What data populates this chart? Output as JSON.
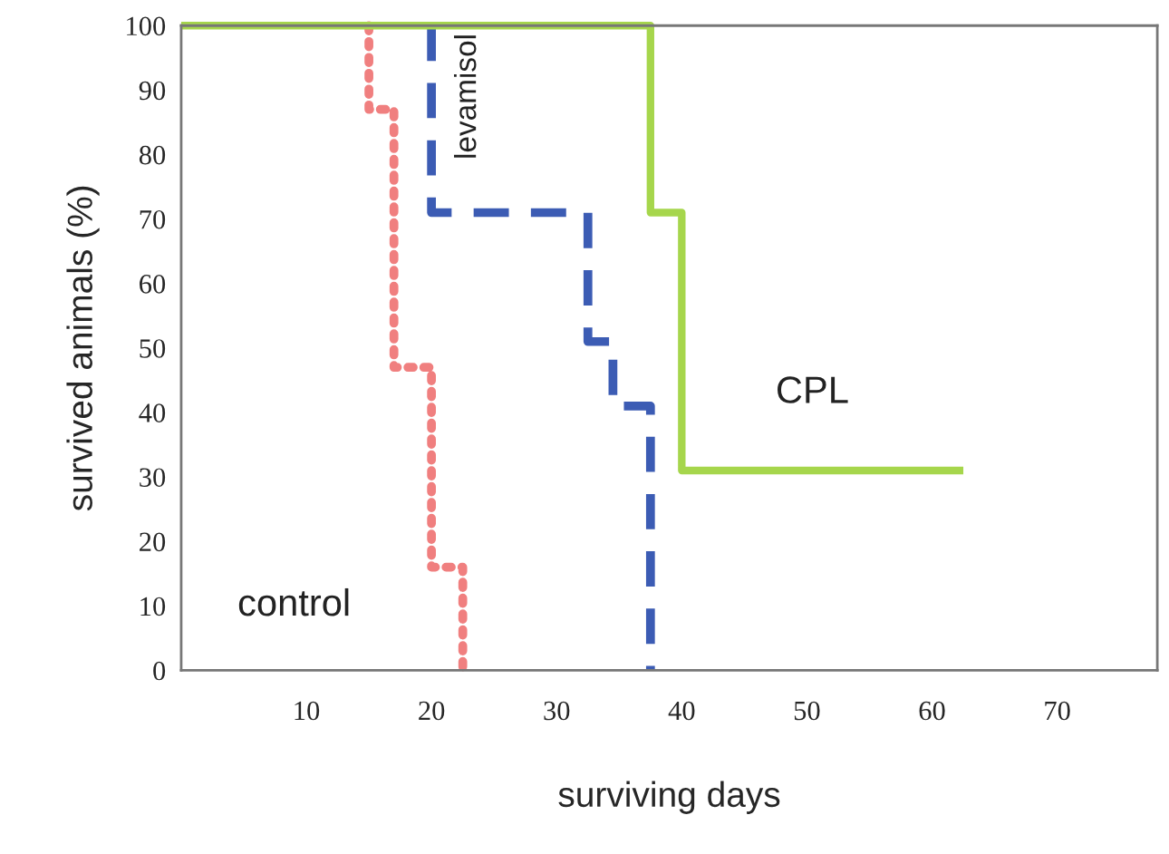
{
  "chart_data": {
    "type": "step",
    "xlabel": "surviving days",
    "ylabel": "survived animals (%)",
    "xlim": [
      0,
      78
    ],
    "ylim": [
      0,
      100
    ],
    "xticks": [
      10,
      20,
      30,
      40,
      50,
      60,
      70
    ],
    "yticks": [
      0,
      10,
      20,
      30,
      40,
      50,
      60,
      70,
      80,
      90,
      100
    ],
    "grid": false,
    "legend": false,
    "series": [
      {
        "name": "control",
        "color": "#f07f7f",
        "line_style": "dotted",
        "x": [
          15,
          15,
          17,
          20,
          22.5
        ],
        "values": [
          100,
          87,
          47,
          16,
          0
        ]
      },
      {
        "name": "levamisol",
        "color": "#3c5cb4",
        "line_style": "dashed",
        "x": [
          20,
          20,
          32.5,
          34.5,
          37.5
        ],
        "values": [
          100,
          71,
          51,
          41,
          0
        ]
      },
      {
        "name": "CPL",
        "color": "#a6d64c",
        "line_style": "solid",
        "x": [
          0,
          37.5,
          40,
          62.5
        ],
        "values": [
          100,
          71,
          31,
          31
        ]
      }
    ]
  }
}
